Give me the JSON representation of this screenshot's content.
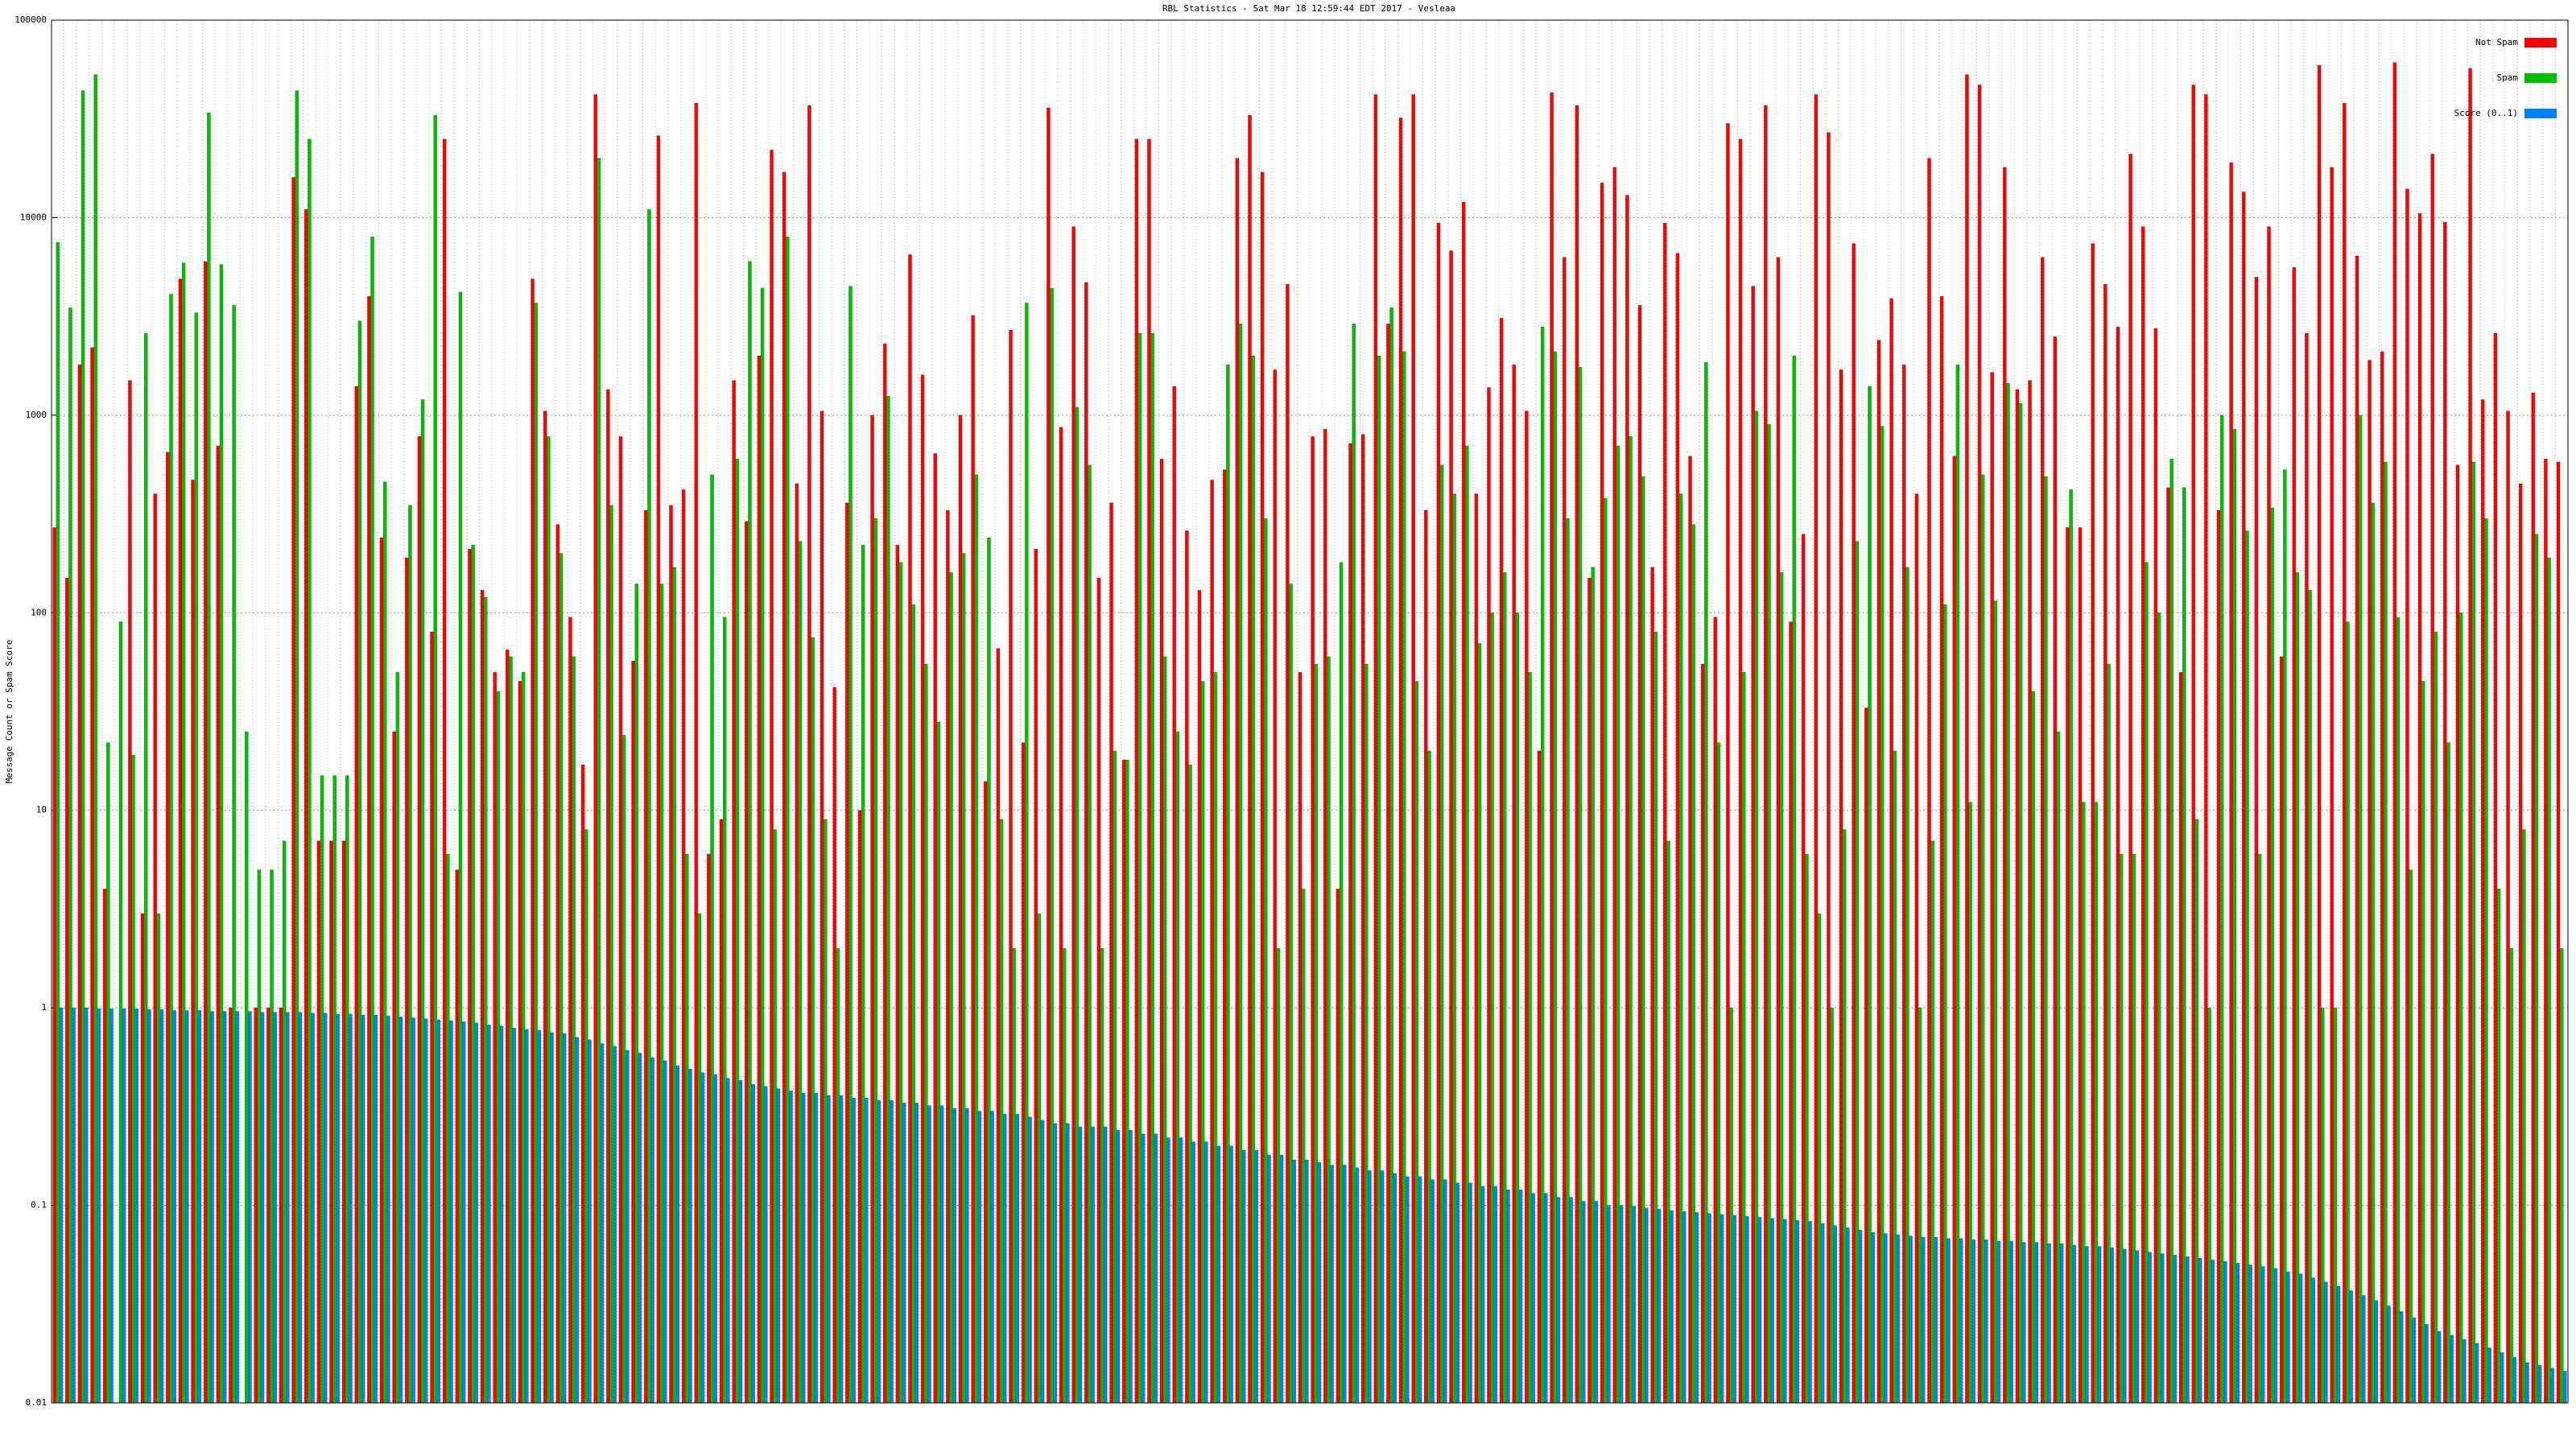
{
  "chart_data": {
    "type": "bar",
    "title": "RBL Statistics - Sat Mar 18 12:59:44 EDT 2017 - Vesleaa",
    "y_label": "Message Count or Spam Score",
    "log_y": true,
    "grid": true,
    "legend": "top-right",
    "ylim": [
      0.01,
      100000
    ],
    "yticks": [
      0.01,
      0.1,
      1,
      10,
      100,
      1000,
      10000,
      100000
    ],
    "categories": [
      null,
      null,
      null,
      null,
      null,
      null,
      null,
      null,
      null,
      null,
      null,
      null,
      null,
      null,
      null,
      null,
      null,
      null,
      null,
      null,
      null,
      null,
      null,
      null,
      null,
      null,
      null,
      null,
      null,
      null,
      null,
      null,
      null,
      null,
      null,
      null,
      null,
      null,
      null,
      null,
      null,
      null,
      null,
      null,
      null,
      null,
      null,
      null,
      null,
      null,
      null,
      null,
      null,
      null,
      null,
      null,
      null,
      null,
      null,
      null,
      null,
      null,
      null,
      null,
      null,
      null,
      null,
      null,
      null,
      null,
      null,
      null,
      null,
      null,
      null,
      null,
      null,
      null,
      null,
      null,
      null,
      null,
      null,
      null,
      null,
      null,
      null,
      null,
      null,
      null,
      null,
      null,
      null,
      null,
      null,
      null,
      null,
      null,
      null,
      null,
      null,
      null,
      null,
      null,
      null,
      null,
      null,
      null,
      null,
      null,
      null,
      null,
      null,
      null,
      null,
      null,
      null,
      null,
      null,
      null,
      null,
      null,
      null,
      null,
      null,
      null,
      null,
      null,
      null,
      null,
      null,
      null,
      null,
      null,
      null,
      null,
      null,
      null,
      null,
      null,
      null,
      null,
      null,
      null,
      null,
      null,
      null,
      null,
      null,
      null,
      null,
      null,
      null,
      null,
      null,
      null,
      null,
      null,
      null,
      null,
      null,
      null,
      null,
      null,
      null,
      null,
      null,
      null,
      null,
      null,
      null,
      null,
      null,
      null,
      null,
      null,
      null,
      null,
      null,
      null,
      null,
      null,
      null,
      null,
      null,
      null,
      null,
      null,
      null,
      null,
      null,
      null,
      null,
      null,
      null,
      null,
      null,
      null,
      null,
      null
    ],
    "series": [
      {
        "name": "Not Spam",
        "color": "#ff0000",
        "values": [
          270,
          150,
          1800,
          2200,
          4,
          null,
          1500,
          3,
          400,
          650,
          4900,
          470,
          6000,
          700,
          1,
          null,
          1,
          1,
          1,
          16000,
          11000,
          7,
          7,
          7,
          1400,
          4000,
          240,
          25,
          190,
          780,
          80,
          25000,
          5,
          210,
          130,
          50,
          65,
          45,
          4900,
          1050,
          280,
          95,
          17,
          42000,
          1350,
          780,
          57,
          330,
          26000,
          350,
          420,
          38000,
          6,
          9,
          1500,
          290,
          2000,
          22000,
          17000,
          450,
          37000,
          1050,
          42,
          360,
          10,
          1000,
          2300,
          220,
          6500,
          1600,
          640,
          330,
          1000,
          3200,
          14,
          66,
          2700,
          22,
          210,
          36000,
          870,
          9000,
          4700,
          150,
          360,
          18,
          25000,
          25000,
          600,
          1400,
          260,
          130,
          470,
          530,
          20000,
          33000,
          17000,
          1700,
          4600,
          50,
          780,
          850,
          4,
          720,
          800,
          42000,
          2900,
          32000,
          42000,
          330,
          9400,
          6800,
          12000,
          400,
          1380,
          3100,
          1800,
          1050,
          20,
          43000,
          6300,
          37000,
          150,
          15000,
          18000,
          13000,
          3600,
          170,
          9400,
          6600,
          620,
          55,
          95,
          30000,
          25000,
          4500,
          37000,
          6300,
          90,
          250,
          42000,
          27000,
          1700,
          7400,
          33,
          2400,
          3900,
          1800,
          400,
          20000,
          4000,
          620,
          53000,
          47000,
          1650,
          18000,
          1350,
          1500,
          6300,
          2500,
          270,
          270,
          7400,
          4600,
          2800,
          21000,
          9000,
          2750,
          430,
          50,
          47000,
          42000,
          330,
          19000,
          13500,
          5000,
          9000,
          60,
          5600,
          2600,
          59000,
          18000,
          38000,
          6400,
          1900,
          2100,
          61000,
          14000,
          10500,
          21000,
          9500,
          560,
          57000,
          1200,
          2600,
          1050,
          450,
          1300,
          600,
          580
        ]
      },
      {
        "name": "Spam",
        "color": "#00c000",
        "values": [
          7500,
          3500,
          44000,
          53000,
          22,
          90,
          19,
          2600,
          3,
          4100,
          5900,
          3300,
          34000,
          5800,
          3600,
          25,
          5,
          5,
          7,
          44000,
          25000,
          15,
          15,
          15,
          3000,
          8000,
          460,
          50,
          350,
          1200,
          33000,
          6,
          4200,
          220,
          120,
          40,
          60,
          50,
          3700,
          780,
          200,
          60,
          8,
          20000,
          350,
          24,
          140,
          11000,
          140,
          170,
          6,
          3,
          500,
          95,
          600,
          6000,
          4400,
          8,
          8000,
          230,
          75,
          9,
          2,
          4500,
          220,
          300,
          1250,
          180,
          110,
          55,
          28,
          160,
          200,
          500,
          240,
          9,
          2,
          3700,
          3,
          4400,
          2,
          1100,
          560,
          2,
          20,
          18,
          2600,
          2600,
          60,
          25,
          17,
          45,
          50,
          1800,
          2900,
          2000,
          300,
          2,
          140,
          4,
          55,
          60,
          180,
          2900,
          55,
          2000,
          3500,
          2100,
          45,
          20,
          560,
          400,
          700,
          70,
          100,
          160,
          100,
          50,
          2800,
          2100,
          300,
          1750,
          170,
          380,
          700,
          780,
          490,
          80,
          7,
          400,
          280,
          1850,
          22,
          1,
          50,
          1050,
          900,
          160,
          2000,
          6,
          3,
          1,
          8,
          230,
          1400,
          880,
          20,
          170,
          1,
          7,
          110,
          1800,
          11,
          500,
          115,
          1450,
          1150,
          40,
          490,
          25,
          420,
          11,
          11,
          55,
          6,
          6,
          180,
          100,
          600,
          430,
          9,
          1,
          1000,
          850,
          260,
          6,
          340,
          530,
          160,
          130,
          1,
          1,
          90,
          1000,
          360,
          580,
          95,
          5,
          45,
          80,
          22,
          100,
          580,
          300,
          4,
          2,
          8,
          250,
          190,
          2
        ]
      },
      {
        "name": "Score (0..1)",
        "color": "#0080ff",
        "values": [
          1.0,
          1.0,
          1.0,
          0.99,
          0.99,
          0.99,
          0.99,
          0.98,
          0.98,
          0.97,
          0.97,
          0.97,
          0.96,
          0.96,
          0.96,
          0.96,
          0.95,
          0.95,
          0.95,
          0.95,
          0.94,
          0.94,
          0.93,
          0.93,
          0.92,
          0.92,
          0.91,
          0.9,
          0.89,
          0.88,
          0.87,
          0.86,
          0.85,
          0.84,
          0.82,
          0.81,
          0.79,
          0.78,
          0.77,
          0.75,
          0.74,
          0.71,
          0.69,
          0.66,
          0.64,
          0.61,
          0.59,
          0.56,
          0.54,
          0.51,
          0.49,
          0.47,
          0.46,
          0.44,
          0.43,
          0.41,
          0.4,
          0.39,
          0.38,
          0.37,
          0.37,
          0.36,
          0.36,
          0.35,
          0.35,
          0.34,
          0.34,
          0.33,
          0.33,
          0.32,
          0.32,
          0.31,
          0.31,
          0.3,
          0.3,
          0.29,
          0.29,
          0.28,
          0.27,
          0.26,
          0.26,
          0.25,
          0.25,
          0.25,
          0.24,
          0.24,
          0.23,
          0.23,
          0.22,
          0.22,
          0.21,
          0.21,
          0.2,
          0.2,
          0.19,
          0.19,
          0.18,
          0.18,
          0.17,
          0.17,
          0.165,
          0.16,
          0.16,
          0.155,
          0.15,
          0.15,
          0.145,
          0.14,
          0.14,
          0.135,
          0.135,
          0.13,
          0.13,
          0.125,
          0.125,
          0.12,
          0.12,
          0.115,
          0.115,
          0.11,
          0.11,
          0.105,
          0.105,
          0.1,
          0.1,
          0.099,
          0.097,
          0.096,
          0.094,
          0.093,
          0.092,
          0.091,
          0.09,
          0.089,
          0.088,
          0.087,
          0.086,
          0.085,
          0.084,
          0.083,
          0.081,
          0.079,
          0.077,
          0.075,
          0.073,
          0.072,
          0.071,
          0.07,
          0.069,
          0.069,
          0.068,
          0.068,
          0.067,
          0.067,
          0.066,
          0.066,
          0.065,
          0.065,
          0.064,
          0.064,
          0.063,
          0.062,
          0.062,
          0.061,
          0.06,
          0.059,
          0.058,
          0.057,
          0.056,
          0.055,
          0.054,
          0.053,
          0.052,
          0.051,
          0.05,
          0.049,
          0.048,
          0.046,
          0.045,
          0.043,
          0.041,
          0.039,
          0.037,
          0.035,
          0.033,
          0.031,
          0.029,
          0.027,
          0.025,
          0.023,
          0.022,
          0.021,
          0.02,
          0.019,
          0.018,
          0.017,
          0.016,
          0.0155,
          0.015,
          0.0145
        ]
      }
    ]
  }
}
